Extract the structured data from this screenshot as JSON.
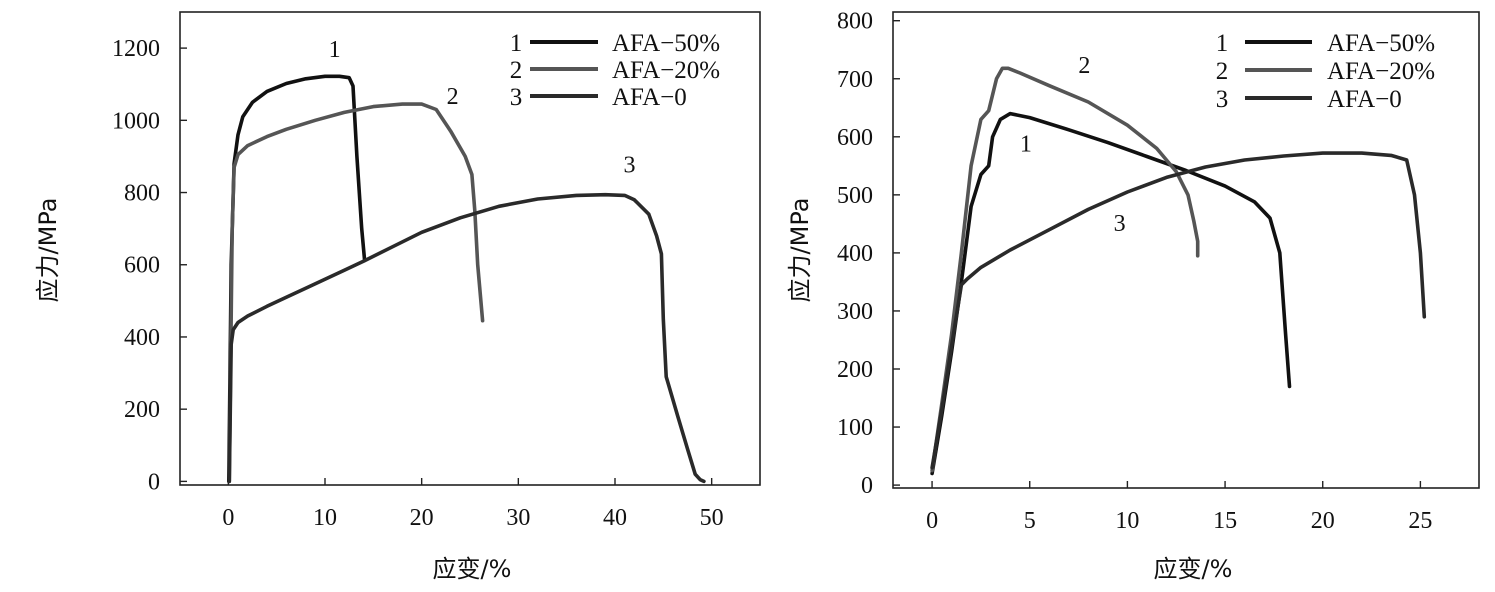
{
  "chart_data": [
    {
      "type": "line",
      "xlabel": "应变/%",
      "ylabel": "应力/MPa",
      "xlim": [
        -5,
        55
      ],
      "ylim": [
        -10,
        1300
      ],
      "xticks": [
        0,
        10,
        20,
        30,
        40,
        50
      ],
      "yticks": [
        0,
        200,
        400,
        600,
        800,
        1000,
        1200
      ],
      "legend_position": "top-right",
      "legend": [
        {
          "number": "1",
          "name": "AFA−50%",
          "color": "#111111"
        },
        {
          "number": "2",
          "name": "AFA−20%",
          "color": "#555555"
        },
        {
          "number": "3",
          "name": "AFA−0",
          "color": "#2a2a2a"
        }
      ],
      "curve_labels": [
        {
          "text": "1",
          "x": 11,
          "y": 1175
        },
        {
          "text": "2",
          "x": 23.2,
          "y": 1045
        },
        {
          "text": "3",
          "x": 41.5,
          "y": 855
        }
      ],
      "series": [
        {
          "name": "AFA−50%",
          "color": "#111111",
          "x": [
            0.05,
            0.3,
            0.6,
            1,
            1.5,
            2.5,
            4,
            6,
            8,
            10,
            11.5,
            12.5,
            12.9,
            13.3,
            13.8,
            14.1
          ],
          "y": [
            0,
            600,
            880,
            960,
            1010,
            1050,
            1080,
            1102,
            1115,
            1122,
            1122,
            1118,
            1095,
            900,
            700,
            612
          ]
        },
        {
          "name": "AFA−20%",
          "color": "#555555",
          "x": [
            0.1,
            0.4,
            0.6,
            1,
            2,
            4,
            6,
            9,
            12,
            15,
            18,
            20,
            21.5,
            23,
            24.5,
            25.2,
            25.5,
            25.8,
            26.3
          ],
          "y": [
            0,
            700,
            870,
            905,
            930,
            955,
            975,
            1000,
            1022,
            1038,
            1045,
            1045,
            1030,
            970,
            900,
            850,
            750,
            600,
            445
          ]
        },
        {
          "name": "AFA−0",
          "color": "#2a2a2a",
          "x": [
            0.1,
            0.3,
            0.5,
            1,
            2,
            4,
            6,
            8,
            10,
            12,
            14,
            17,
            20,
            24,
            28,
            32,
            36,
            39,
            41,
            42,
            43.5,
            44.3,
            44.8,
            45,
            45.3,
            46.5,
            47.5,
            48.3,
            48.8,
            49.2
          ],
          "y": [
            0,
            380,
            420,
            440,
            458,
            485,
            510,
            535,
            560,
            585,
            610,
            650,
            690,
            730,
            762,
            782,
            792,
            794,
            792,
            780,
            740,
            680,
            630,
            450,
            290,
            180,
            90,
            20,
            5,
            0
          ]
        }
      ]
    },
    {
      "type": "line",
      "xlabel": "应变/%",
      "ylabel": "应力/MPa",
      "xlim": [
        -2,
        28
      ],
      "ylim": [
        -5,
        815
      ],
      "xticks": [
        0,
        5,
        10,
        15,
        20,
        25
      ],
      "yticks": [
        0,
        100,
        200,
        300,
        400,
        500,
        600,
        700,
        800
      ],
      "legend_position": "top-right",
      "legend": [
        {
          "number": "1",
          "name": "AFA−50%",
          "color": "#111111"
        },
        {
          "number": "2",
          "name": "AFA−20%",
          "color": "#555555"
        },
        {
          "number": "3",
          "name": "AFA−0",
          "color": "#2a2a2a"
        }
      ],
      "curve_labels": [
        {
          "text": "1",
          "x": 4.8,
          "y": 575
        },
        {
          "text": "2",
          "x": 7.8,
          "y": 710
        },
        {
          "text": "3",
          "x": 9.6,
          "y": 438
        }
      ],
      "series": [
        {
          "name": "AFA−50%",
          "color": "#111111",
          "x": [
            0,
            0.5,
            1,
            1.5,
            2,
            2.5,
            2.9,
            3.1,
            3.5,
            4,
            5,
            7,
            9,
            11,
            13,
            15,
            16.5,
            17.3,
            17.8,
            18.1,
            18.3
          ],
          "y": [
            20,
            120,
            230,
            350,
            480,
            535,
            550,
            600,
            630,
            640,
            633,
            612,
            590,
            566,
            542,
            515,
            488,
            460,
            400,
            260,
            170
          ]
        },
        {
          "name": "AFA−20%",
          "color": "#555555",
          "x": [
            0,
            0.5,
            1,
            1.5,
            2,
            2.5,
            2.9,
            3.3,
            3.6,
            3.9,
            4.5,
            6,
            8,
            10,
            11.5,
            12.5,
            13.1,
            13.4,
            13.6,
            13.6
          ],
          "y": [
            25,
            140,
            260,
            400,
            550,
            630,
            645,
            700,
            718,
            718,
            710,
            688,
            660,
            620,
            580,
            540,
            500,
            455,
            420,
            395
          ]
        },
        {
          "name": "AFA−0",
          "color": "#2a2a2a",
          "x": [
            0,
            0.5,
            1,
            1.5,
            1.8,
            2.5,
            4,
            6,
            8,
            10,
            12,
            14,
            16,
            18,
            20,
            22,
            23.5,
            24.3,
            24.7,
            25,
            25.2
          ],
          "y": [
            30,
            130,
            240,
            345,
            355,
            375,
            405,
            440,
            475,
            505,
            530,
            548,
            560,
            567,
            572,
            572,
            568,
            560,
            500,
            400,
            290
          ]
        }
      ]
    }
  ]
}
